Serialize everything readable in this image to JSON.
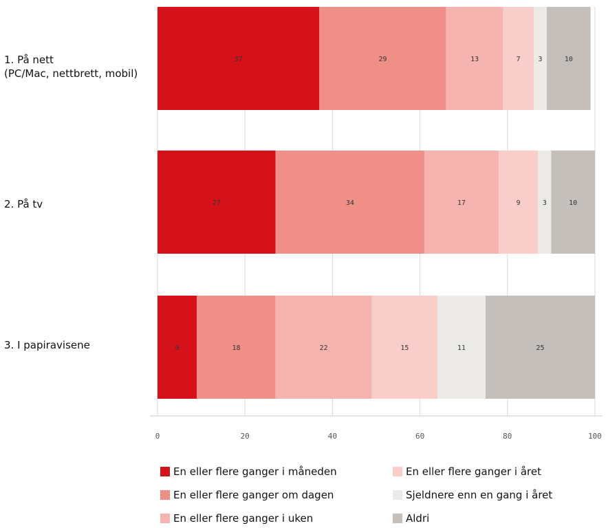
{
  "chart_data": {
    "type": "bar",
    "orientation": "horizontal",
    "stacked": true,
    "categories": [
      "1. På nett\n(PC/Mac, nettbrett, mobil)",
      "2. På tv",
      "3. I papiravisene"
    ],
    "series": [
      {
        "name": "En eller flere ganger i måneden",
        "values": [
          37,
          27,
          9
        ],
        "color": "#d5121a"
      },
      {
        "name": "En eller flere ganger om dagen",
        "values": [
          29,
          34,
          18
        ],
        "color": "#f08e88"
      },
      {
        "name": "En eller flere ganger i uken",
        "values": [
          13,
          17,
          22
        ],
        "color": "#f6b4b0"
      },
      {
        "name": "En eller flere ganger i året",
        "values": [
          7,
          9,
          15
        ],
        "color": "#f9cdca"
      },
      {
        "name": "Sjeldnere enn en gang i året",
        "values": [
          3,
          3,
          11
        ],
        "color": "#ebeae6"
      },
      {
        "name": "Aldri",
        "values": [
          10,
          10,
          25
        ],
        "color": "#c5bfbb"
      }
    ],
    "xlim": [
      0,
      100
    ],
    "xticks": [
      "0",
      "20",
      "40",
      "60",
      "80",
      "100"
    ],
    "grid": true,
    "legend_position": "bottom"
  }
}
